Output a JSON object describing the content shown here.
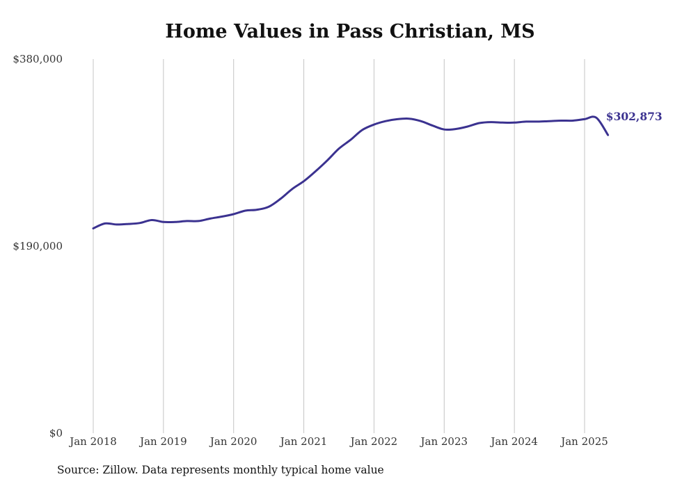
{
  "chart_data": {
    "type": "line",
    "title": "Home Values in Pass Christian, MS",
    "xlabel": "",
    "ylabel": "",
    "x_tick_labels": [
      "Jan 2018",
      "Jan 2019",
      "Jan 2020",
      "Jan 2021",
      "Jan 2022",
      "Jan 2023",
      "Jan 2024",
      "Jan 2025"
    ],
    "y_tick_labels": [
      "$0",
      "$190,000",
      "$380,000"
    ],
    "y_ticks": [
      0,
      190000,
      380000
    ],
    "ylim": [
      0,
      380000
    ],
    "x_range": [
      "2018-01",
      "2025-05"
    ],
    "grid": "vertical lines at each January",
    "line_color": "#3b3290",
    "series": [
      {
        "x": [
          "2018-01",
          "2018-03",
          "2018-05",
          "2018-07",
          "2018-09",
          "2018-11",
          "2019-01",
          "2019-03",
          "2019-05",
          "2019-07",
          "2019-09",
          "2019-11",
          "2020-01",
          "2020-03",
          "2020-05",
          "2020-07",
          "2020-09",
          "2020-11",
          "2021-01",
          "2021-03",
          "2021-05",
          "2021-07",
          "2021-09",
          "2021-11",
          "2022-01",
          "2022-03",
          "2022-05",
          "2022-07",
          "2022-09",
          "2022-11",
          "2023-01",
          "2023-03",
          "2023-05",
          "2023-07",
          "2023-09",
          "2023-11",
          "2024-01",
          "2024-03",
          "2024-05",
          "2024-07",
          "2024-09",
          "2024-11",
          "2025-01",
          "2025-03",
          "2025-05"
        ],
        "values": [
          208000,
          213000,
          212000,
          212500,
          213500,
          216500,
          214500,
          214500,
          215500,
          215500,
          218000,
          220000,
          222500,
          226000,
          227000,
          230000,
          238000,
          248000,
          256000,
          266000,
          277000,
          289000,
          298000,
          308000,
          313500,
          317000,
          319000,
          319500,
          317000,
          312500,
          308500,
          309000,
          311500,
          315000,
          316000,
          315500,
          315500,
          316500,
          316500,
          317000,
          317500,
          317500,
          319000,
          320500,
          302873
        ],
        "end_label": "$302,873"
      }
    ]
  },
  "source_note": "Source: Zillow. Data represents monthly typical home value"
}
